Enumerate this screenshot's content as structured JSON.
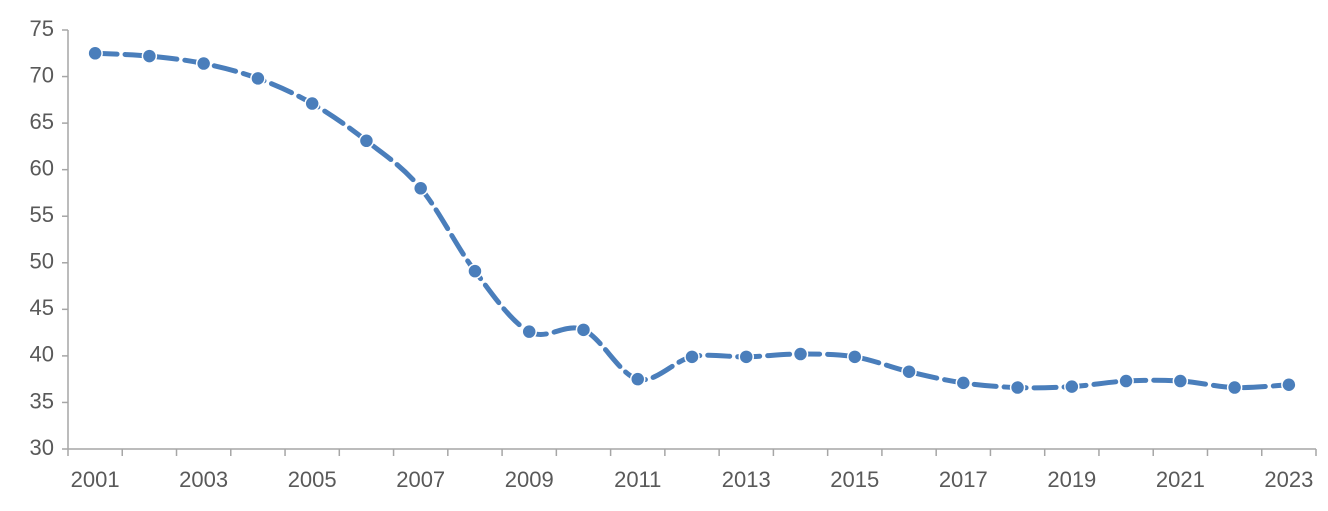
{
  "chart_data": {
    "type": "line",
    "categories": [
      "2001",
      null,
      "2003",
      null,
      "2005",
      null,
      "2007",
      null,
      "2009",
      null,
      "2011",
      null,
      "2013",
      null,
      "2015",
      null,
      "2017",
      null,
      "2019",
      null,
      "2021",
      null,
      "2023"
    ],
    "series": [
      {
        "color": "#4a7ebb",
        "values": [
          72.5,
          72.2,
          71.4,
          69.8,
          67.1,
          63.1,
          58.0,
          49.1,
          42.6,
          42.8,
          37.5,
          39.9,
          39.9,
          40.2,
          39.9,
          38.3,
          37.1,
          36.6,
          36.7,
          37.3,
          37.3,
          36.6,
          36.9
        ]
      }
    ],
    "ylim": [
      30,
      75
    ],
    "yticks": [
      30,
      35,
      40,
      45,
      50,
      55,
      60,
      65,
      70,
      75
    ],
    "grid": false,
    "smooth": true,
    "dashed": true,
    "markers": true
  }
}
